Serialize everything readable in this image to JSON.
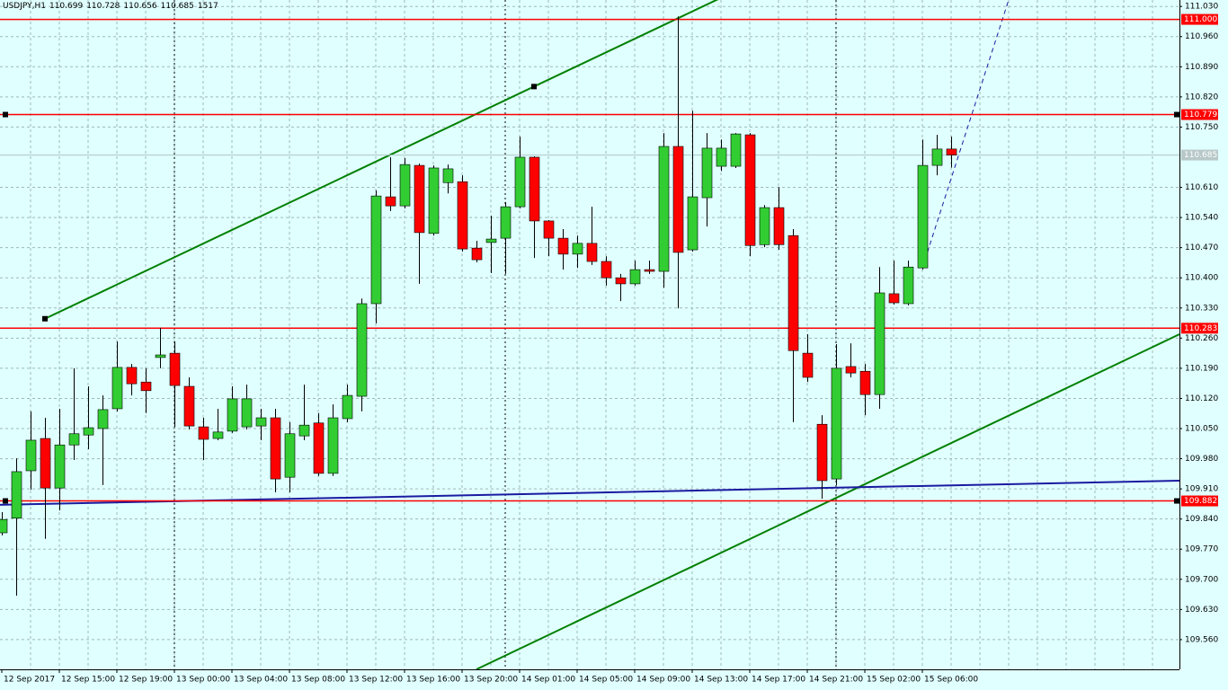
{
  "chart_data": {
    "type": "candlestick",
    "symbol": "USDJPY,H1",
    "last_volume": 1517,
    "categories": [
      "12 Sep 2017",
      null,
      null,
      null,
      "12 Sep 15:00",
      null,
      null,
      null,
      "12 Sep 19:00",
      null,
      null,
      null,
      "13 Sep 00:00",
      null,
      null,
      null,
      "13 Sep 04:00",
      null,
      null,
      null,
      "13 Sep 08:00",
      null,
      null,
      null,
      "13 Sep 12:00",
      null,
      null,
      null,
      "13 Sep 16:00",
      null,
      null,
      null,
      "13 Sep 20:00",
      null,
      null,
      null,
      "14 Sep 01:00",
      null,
      null,
      null,
      "14 Sep 05:00",
      null,
      null,
      null,
      "14 Sep 09:00",
      null,
      null,
      null,
      "14 Sep 13:00",
      null,
      null,
      null,
      "14 Sep 17:00",
      null,
      null,
      null,
      "14 Sep 21:00",
      null,
      null,
      null,
      "15 Sep 02:00",
      null,
      null,
      null,
      "15 Sep 06:00",
      null,
      null
    ],
    "open": [
      109.808,
      109.842,
      109.952,
      110.027,
      109.912,
      110.012,
      110.035,
      110.05,
      110.096,
      110.192,
      110.158,
      110.215,
      110.225,
      110.148,
      110.054,
      110.027,
      110.044,
      110.054,
      110.056,
      110.075,
      109.937,
      110.033,
      110.063,
      109.946,
      110.073,
      110.125,
      110.34,
      110.588,
      110.567,
      110.661,
      110.503,
      110.621,
      110.623,
      110.469,
      110.482,
      110.492,
      110.565,
      110.68,
      110.532,
      110.492,
      110.455,
      110.48,
      110.438,
      110.4,
      110.386,
      110.419,
      110.415,
      110.705,
      110.465,
      110.586,
      110.659,
      110.659,
      110.732,
      110.477,
      110.563,
      110.498,
      110.225,
      110.06,
      109.933,
      110.194,
      110.183,
      110.129,
      110.363,
      110.34,
      110.423,
      110.661,
      110.699
    ],
    "high": [
      109.856,
      109.981,
      110.09,
      110.075,
      110.096,
      110.19,
      110.148,
      110.127,
      110.252,
      110.2,
      110.19,
      110.284,
      110.252,
      110.169,
      110.075,
      110.096,
      110.148,
      110.152,
      110.096,
      110.096,
      110.065,
      110.152,
      110.086,
      110.106,
      110.152,
      110.352,
      110.603,
      110.68,
      110.678,
      110.665,
      110.661,
      110.663,
      110.638,
      110.486,
      110.544,
      110.576,
      110.728,
      110.682,
      110.534,
      110.513,
      110.498,
      110.565,
      110.45,
      110.409,
      110.44,
      110.44,
      110.736,
      111.007,
      110.788,
      110.736,
      110.721,
      110.736,
      110.736,
      110.569,
      110.611,
      110.513,
      110.269,
      110.081,
      110.246,
      110.248,
      110.2,
      110.425,
      110.44,
      110.44,
      110.721,
      110.732,
      110.728
    ],
    "low": [
      109.802,
      109.662,
      109.908,
      109.794,
      109.86,
      109.977,
      110.002,
      109.919,
      110.09,
      110.127,
      110.086,
      110.19,
      110.054,
      110.048,
      109.977,
      110.023,
      110.04,
      110.048,
      110.023,
      109.902,
      109.902,
      110.023,
      109.94,
      109.94,
      110.065,
      110.09,
      110.294,
      110.555,
      110.561,
      110.386,
      110.498,
      110.596,
      110.461,
      110.436,
      110.411,
      110.409,
      110.561,
      110.446,
      110.45,
      110.419,
      110.423,
      110.43,
      110.382,
      110.346,
      110.382,
      110.409,
      110.377,
      110.329,
      110.461,
      110.519,
      110.648,
      110.655,
      110.45,
      110.471,
      110.465,
      110.065,
      110.158,
      109.887,
      109.919,
      110.169,
      110.081,
      110.096,
      110.338,
      110.336,
      110.419,
      110.638,
      110.656
    ],
    "close": [
      109.839,
      109.95,
      110.023,
      109.912,
      110.012,
      110.038,
      110.052,
      110.094,
      110.192,
      110.154,
      110.138,
      110.221,
      110.15,
      110.056,
      110.025,
      110.042,
      110.119,
      110.119,
      110.075,
      109.933,
      110.038,
      110.058,
      109.946,
      110.075,
      110.127,
      110.34,
      110.59,
      110.567,
      110.663,
      110.505,
      110.655,
      110.653,
      110.467,
      110.442,
      110.49,
      110.565,
      110.68,
      110.532,
      110.492,
      110.455,
      110.48,
      110.438,
      110.4,
      110.386,
      110.419,
      110.415,
      110.705,
      110.459,
      110.588,
      110.701,
      110.701,
      110.734,
      110.475,
      110.563,
      110.477,
      110.231,
      110.169,
      109.929,
      110.19,
      110.179,
      110.129,
      110.365,
      110.342,
      110.425,
      110.661,
      110.699,
      110.685
    ],
    "up_color": "#32cd32",
    "down_color": "#ff0000",
    "ylim": [
      109.491,
      111.045
    ],
    "yticks": [
      {
        "value": 111.03,
        "label": "111.030"
      },
      {
        "value": 110.96,
        "label": "110.960"
      },
      {
        "value": 110.89,
        "label": "110.890"
      },
      {
        "value": 110.82,
        "label": "110.820"
      },
      {
        "value": 110.75,
        "label": "110.750"
      },
      {
        "value": 110.61,
        "label": "110.610"
      },
      {
        "value": 110.54,
        "label": "110.540"
      },
      {
        "value": 110.47,
        "label": "110.470"
      },
      {
        "value": 110.4,
        "label": "110.400"
      },
      {
        "value": 110.33,
        "label": "110.330"
      },
      {
        "value": 110.26,
        "label": "110.260"
      },
      {
        "value": 110.19,
        "label": "110.190"
      },
      {
        "value": 110.12,
        "label": "110.120"
      },
      {
        "value": 110.05,
        "label": "110.050"
      },
      {
        "value": 109.98,
        "label": "109.980"
      },
      {
        "value": 109.91,
        "label": "109.910"
      },
      {
        "value": 109.84,
        "label": "109.840"
      },
      {
        "value": 109.77,
        "label": "109.770"
      },
      {
        "value": 109.7,
        "label": "109.700"
      },
      {
        "value": 109.63,
        "label": "109.630"
      },
      {
        "value": 109.56,
        "label": "109.560"
      }
    ],
    "grid": true,
    "hlines": [
      {
        "value": 111,
        "label": "111.000"
      },
      110.779,
      110.283,
      109.882
    ],
    "hline_color": "#ff0000",
    "trendlines": [
      {
        "color": "#008000",
        "x": [
          3,
          37
        ],
        "y": [
          110.305,
          110.844
        ],
        "dashed": false
      },
      {
        "color": "#008000",
        "x": [
          33,
          81.875
        ],
        "y": [
          109.491,
          110.269
        ],
        "dashed": false
      },
      {
        "color": "#1a1aa0",
        "x": [
          -0.125,
          81.875
        ],
        "y": [
          109.873,
          109.929
        ],
        "dashed": false
      },
      {
        "color": "#1a1aa0",
        "x": [
          64,
          70
        ],
        "y": [
          110.423,
          111.045
        ],
        "dashed": true
      }
    ]
  }
}
